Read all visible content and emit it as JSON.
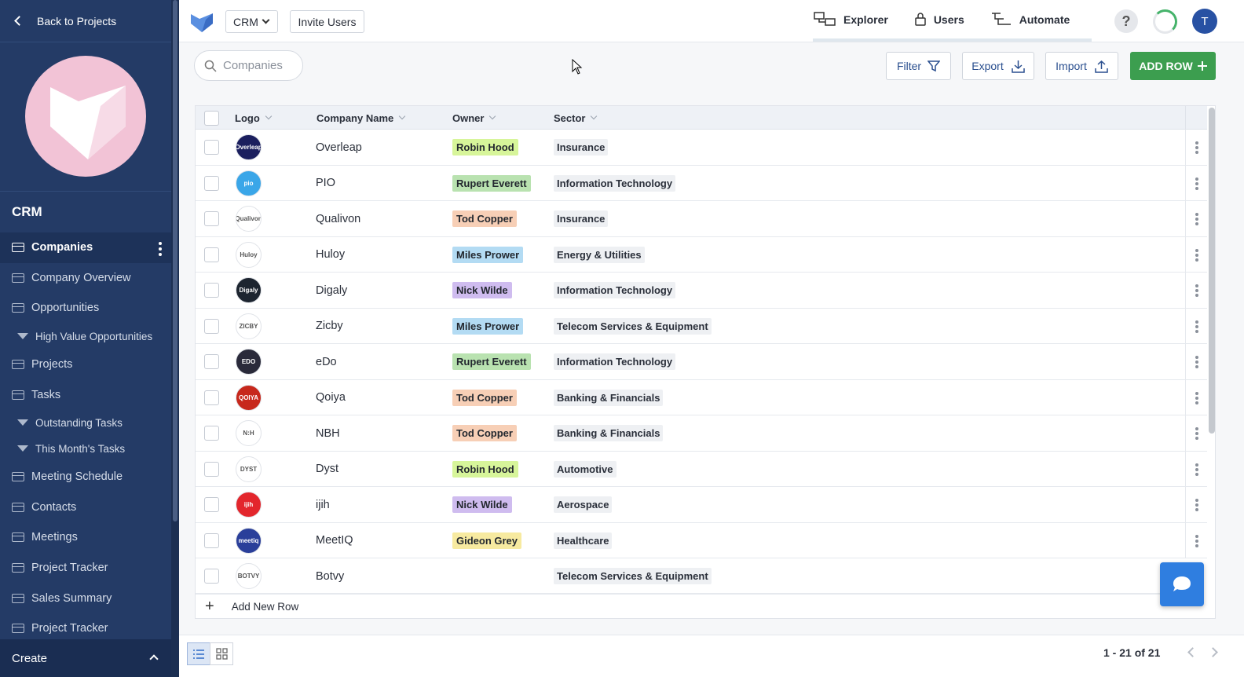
{
  "sidebar": {
    "back_label": "Back to Projects",
    "project_title": "CRM",
    "items": [
      {
        "label": "Companies",
        "type": "table",
        "active": true
      },
      {
        "label": "Company Overview",
        "type": "table"
      },
      {
        "label": "Opportunities",
        "type": "table"
      },
      {
        "label": "High Value Opportunities",
        "type": "filter"
      },
      {
        "label": "Projects",
        "type": "table"
      },
      {
        "label": "Tasks",
        "type": "table"
      },
      {
        "label": "Outstanding Tasks",
        "type": "filter"
      },
      {
        "label": "This Month's Tasks",
        "type": "filter"
      },
      {
        "label": "Meeting Schedule",
        "type": "table"
      },
      {
        "label": "Contacts",
        "type": "table"
      },
      {
        "label": "Meetings",
        "type": "table"
      },
      {
        "label": "Project Tracker",
        "type": "table"
      },
      {
        "label": "Sales Summary",
        "type": "table"
      },
      {
        "label": "Project Tracker",
        "type": "table"
      }
    ],
    "create_label": "Create"
  },
  "topbar": {
    "app_select": "CRM",
    "invite_label": "Invite Users",
    "nav": [
      {
        "label": "Explorer",
        "icon": "explorer-icon"
      },
      {
        "label": "Users",
        "icon": "lock-icon"
      },
      {
        "label": "Automate",
        "icon": "automate-icon"
      }
    ],
    "help_label": "?",
    "avatar_initial": "T"
  },
  "toolbar": {
    "search_placeholder": "Companies",
    "filter_label": "Filter",
    "export_label": "Export",
    "import_label": "Import",
    "add_row_label": "ADD ROW"
  },
  "table": {
    "columns": [
      "Logo",
      "Company Name",
      "Owner",
      "Sector"
    ],
    "rows": [
      {
        "logo_text": "Overleap",
        "logo_bg": "#1b1f5e",
        "name": "Overleap",
        "owner": "Robin Hood",
        "owner_color": "#d7f59a",
        "sector": "Insurance"
      },
      {
        "logo_text": "pio",
        "logo_bg": "#3aa6e8",
        "name": "PIO",
        "owner": "Rupert Everett",
        "owner_color": "#b9e2b0",
        "sector": "Information Technology"
      },
      {
        "logo_text": "Qualivon",
        "logo_bg": "#ffffff",
        "name": "Qualivon",
        "owner": "Tod Copper",
        "owner_color": "#f7cfb6",
        "sector": "Insurance"
      },
      {
        "logo_text": "Huloy",
        "logo_bg": "#ffffff",
        "name": "Huloy",
        "owner": "Miles Prower",
        "owner_color": "#b3dbf3",
        "sector": "Energy & Utilities"
      },
      {
        "logo_text": "Digaly",
        "logo_bg": "#1d2530",
        "name": "Digaly",
        "owner": "Nick Wilde",
        "owner_color": "#cfbcef",
        "sector": "Information Technology"
      },
      {
        "logo_text": "ZICBY",
        "logo_bg": "#ffffff",
        "name": "Zicby",
        "owner": "Miles Prower",
        "owner_color": "#b3dbf3",
        "sector": "Telecom Services & Equipment"
      },
      {
        "logo_text": "EDO",
        "logo_bg": "#2a2a3a",
        "name": "eDo",
        "owner": "Rupert Everett",
        "owner_color": "#b9e2b0",
        "sector": "Information Technology"
      },
      {
        "logo_text": "QOIYA",
        "logo_bg": "#c7281c",
        "name": "Qoiya",
        "owner": "Tod Copper",
        "owner_color": "#f7cfb6",
        "sector": "Banking & Financials"
      },
      {
        "logo_text": "N:H",
        "logo_bg": "#ffffff",
        "name": "NBH",
        "owner": "Tod Copper",
        "owner_color": "#f7cfb6",
        "sector": "Banking & Financials"
      },
      {
        "logo_text": "DYST",
        "logo_bg": "#ffffff",
        "name": "Dyst",
        "owner": "Robin Hood",
        "owner_color": "#d7f59a",
        "sector": "Automotive"
      },
      {
        "logo_text": "ijih",
        "logo_bg": "#e3262c",
        "name": "ijih",
        "owner": "Nick Wilde",
        "owner_color": "#cfbcef",
        "sector": "Aerospace"
      },
      {
        "logo_text": "meetiq",
        "logo_bg": "#2a3f9a",
        "name": "MeetIQ",
        "owner": "Gideon Grey",
        "owner_color": "#f7eaa0",
        "sector": "Healthcare"
      },
      {
        "logo_text": "BOTVY",
        "logo_bg": "#ffffff",
        "name": "Botvy",
        "owner": "",
        "owner_color": "",
        "sector": "Telecom Services & Equipment"
      }
    ],
    "add_new_row_label": "Add New Row"
  },
  "footer": {
    "pagination": "1 - 21 of 21"
  },
  "colors": {
    "sidebar_bg": "#243b66",
    "accent_green": "#3c9e4f",
    "accent_blue": "#2f7ee0"
  }
}
